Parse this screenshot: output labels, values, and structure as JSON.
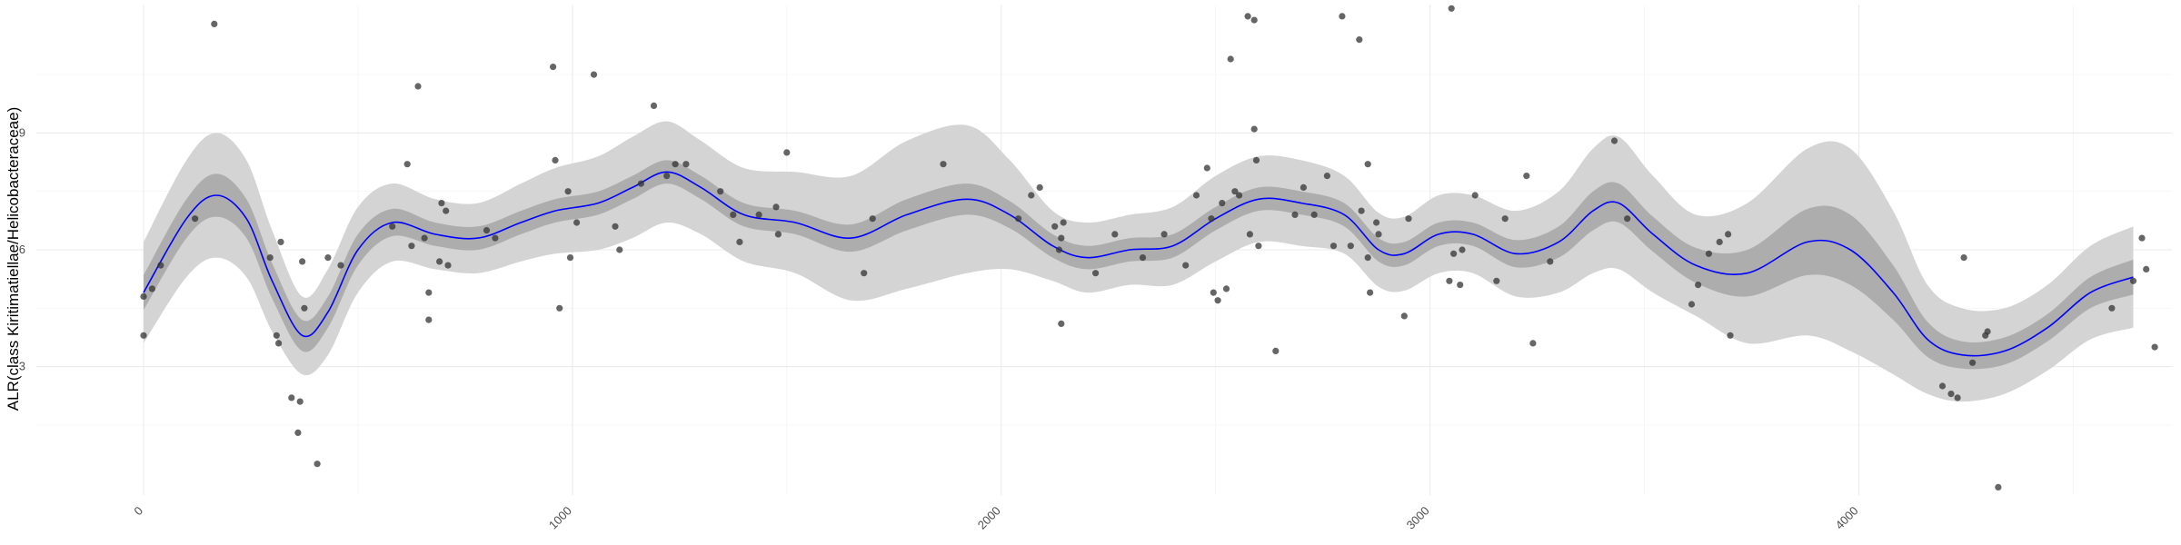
{
  "chart_data": {
    "type": "scatter",
    "title": "",
    "xlabel": "",
    "ylabel": "ALR(class Kiritimatiellae/Helicobacteraceae)",
    "xlim": [
      -250,
      4730
    ],
    "ylim": [
      -0.3,
      12.3
    ],
    "x_ticks": [
      0,
      1000,
      2000,
      3000,
      4000
    ],
    "x_tick_labels": [
      "0",
      "1000",
      "2000",
      "3000",
      "4000"
    ],
    "y_ticks": [
      3,
      6,
      9
    ],
    "y_tick_labels": [
      "3",
      "6",
      "9"
    ],
    "grid": true,
    "legend": "none",
    "colors": {
      "points": "#333333",
      "smooth_line": "#0000ff",
      "inner_band": "#adadad",
      "outer_band": "#d4d4d4",
      "grid": "#ebebeb"
    },
    "points": [
      [
        0,
        4.8
      ],
      [
        0,
        3.8
      ],
      [
        20,
        5.0
      ],
      [
        40,
        5.6
      ],
      [
        120,
        6.8
      ],
      [
        165,
        11.8
      ],
      [
        295,
        5.8
      ],
      [
        310,
        3.8
      ],
      [
        320,
        6.2
      ],
      [
        315,
        3.6
      ],
      [
        345,
        2.2
      ],
      [
        360,
        1.3
      ],
      [
        370,
        5.7
      ],
      [
        375,
        4.5
      ],
      [
        365,
        2.1
      ],
      [
        405,
        0.5
      ],
      [
        430,
        5.8
      ],
      [
        460,
        5.6
      ],
      [
        580,
        6.6
      ],
      [
        615,
        8.2
      ],
      [
        625,
        6.1
      ],
      [
        640,
        10.2
      ],
      [
        655,
        6.3
      ],
      [
        665,
        4.9
      ],
      [
        665,
        4.2
      ],
      [
        690,
        5.7
      ],
      [
        695,
        7.2
      ],
      [
        705,
        7.0
      ],
      [
        710,
        5.6
      ],
      [
        800,
        6.5
      ],
      [
        820,
        6.3
      ],
      [
        955,
        10.7
      ],
      [
        960,
        8.3
      ],
      [
        970,
        4.5
      ],
      [
        990,
        7.5
      ],
      [
        995,
        5.8
      ],
      [
        1010,
        6.7
      ],
      [
        1050,
        10.5
      ],
      [
        1100,
        6.6
      ],
      [
        1110,
        6.0
      ],
      [
        1160,
        7.7
      ],
      [
        1190,
        9.7
      ],
      [
        1220,
        7.9
      ],
      [
        1240,
        8.2
      ],
      [
        1265,
        8.2
      ],
      [
        1345,
        7.5
      ],
      [
        1375,
        6.9
      ],
      [
        1390,
        6.2
      ],
      [
        1435,
        6.9
      ],
      [
        1475,
        7.1
      ],
      [
        1480,
        6.4
      ],
      [
        1500,
        8.5
      ],
      [
        1680,
        5.4
      ],
      [
        1700,
        6.8
      ],
      [
        1865,
        8.2
      ],
      [
        2040,
        6.8
      ],
      [
        2070,
        7.4
      ],
      [
        2090,
        7.6
      ],
      [
        2125,
        6.6
      ],
      [
        2135,
        6.0
      ],
      [
        2140,
        6.3
      ],
      [
        2140,
        4.1
      ],
      [
        2145,
        6.7
      ],
      [
        2220,
        5.4
      ],
      [
        2265,
        6.4
      ],
      [
        2330,
        5.8
      ],
      [
        2380,
        6.4
      ],
      [
        2430,
        5.6
      ],
      [
        2455,
        7.4
      ],
      [
        2480,
        8.1
      ],
      [
        2490,
        6.8
      ],
      [
        2495,
        4.9
      ],
      [
        2505,
        4.7
      ],
      [
        2515,
        7.2
      ],
      [
        2525,
        5.0
      ],
      [
        2535,
        10.9
      ],
      [
        2545,
        7.5
      ],
      [
        2555,
        7.4
      ],
      [
        2575,
        12.0
      ],
      [
        2580,
        6.4
      ],
      [
        2590,
        9.1
      ],
      [
        2590,
        11.9
      ],
      [
        2595,
        8.3
      ],
      [
        2600,
        6.1
      ],
      [
        2640,
        3.4
      ],
      [
        2685,
        6.9
      ],
      [
        2705,
        7.6
      ],
      [
        2730,
        6.9
      ],
      [
        2760,
        7.9
      ],
      [
        2775,
        6.1
      ],
      [
        2795,
        12.0
      ],
      [
        2815,
        6.1
      ],
      [
        2835,
        11.4
      ],
      [
        2840,
        7.0
      ],
      [
        2855,
        8.2
      ],
      [
        2855,
        5.8
      ],
      [
        2860,
        4.9
      ],
      [
        2875,
        6.7
      ],
      [
        2880,
        6.4
      ],
      [
        2940,
        4.3
      ],
      [
        2950,
        6.8
      ],
      [
        3050,
        12.2
      ],
      [
        3045,
        5.2
      ],
      [
        3055,
        5.9
      ],
      [
        3070,
        5.1
      ],
      [
        3075,
        6.0
      ],
      [
        3105,
        7.4
      ],
      [
        3155,
        5.2
      ],
      [
        3175,
        6.8
      ],
      [
        3225,
        7.9
      ],
      [
        3240,
        3.6
      ],
      [
        3280,
        5.7
      ],
      [
        3430,
        8.8
      ],
      [
        3460,
        6.8
      ],
      [
        3610,
        4.6
      ],
      [
        3625,
        5.1
      ],
      [
        3650,
        5.9
      ],
      [
        3675,
        6.2
      ],
      [
        3695,
        6.4
      ],
      [
        3700,
        3.8
      ],
      [
        4195,
        2.5
      ],
      [
        4215,
        2.3
      ],
      [
        4230,
        2.2
      ],
      [
        4245,
        5.8
      ],
      [
        4265,
        3.1
      ],
      [
        4295,
        3.8
      ],
      [
        4300,
        3.9
      ],
      [
        4325,
        -0.1
      ],
      [
        4590,
        4.5
      ],
      [
        4640,
        5.2
      ],
      [
        4660,
        6.3
      ],
      [
        4670,
        5.5
      ],
      [
        4690,
        3.5
      ]
    ],
    "smooth_x": [
      0,
      100,
      170,
      240,
      300,
      370,
      430,
      500,
      580,
      680,
      780,
      880,
      960,
      1060,
      1140,
      1220,
      1300,
      1400,
      1520,
      1650,
      1780,
      1920,
      2020,
      2120,
      2200,
      2300,
      2400,
      2500,
      2600,
      2700,
      2800,
      2880,
      2940,
      3020,
      3100,
      3200,
      3300,
      3380,
      3440,
      3520,
      3620,
      3740,
      3880,
      3980,
      4080,
      4160,
      4240,
      4340,
      4440,
      4540,
      4640
    ],
    "smooth_y": [
      4.9,
      6.8,
      7.4,
      6.8,
      5.2,
      3.8,
      4.4,
      6.0,
      6.7,
      6.4,
      6.3,
      6.7,
      7.0,
      7.2,
      7.6,
      8.0,
      7.6,
      6.9,
      6.7,
      6.3,
      6.9,
      7.3,
      6.9,
      6.1,
      5.8,
      6.0,
      6.1,
      6.8,
      7.3,
      7.2,
      6.9,
      6.0,
      5.9,
      6.4,
      6.4,
      5.9,
      6.2,
      7.0,
      7.2,
      6.4,
      5.6,
      5.4,
      6.2,
      6.0,
      4.9,
      3.7,
      3.3,
      3.4,
      4.0,
      4.9,
      5.3
    ],
    "inner_band_halfwidth": [
      0.45,
      0.5,
      0.55,
      0.5,
      0.45,
      0.4,
      0.4,
      0.4,
      0.35,
      0.3,
      0.3,
      0.3,
      0.3,
      0.3,
      0.3,
      0.3,
      0.3,
      0.3,
      0.3,
      0.35,
      0.4,
      0.4,
      0.35,
      0.3,
      0.3,
      0.3,
      0.3,
      0.3,
      0.3,
      0.3,
      0.3,
      0.3,
      0.3,
      0.3,
      0.3,
      0.35,
      0.4,
      0.5,
      0.5,
      0.45,
      0.45,
      0.6,
      0.85,
      0.9,
      0.7,
      0.45,
      0.35,
      0.35,
      0.35,
      0.4,
      0.45
    ],
    "outer_band_halfwidth": [
      1.3,
      1.5,
      1.6,
      1.5,
      1.3,
      1.0,
      1.1,
      1.1,
      1.0,
      0.9,
      0.9,
      1.0,
      1.1,
      1.2,
      1.3,
      1.3,
      1.2,
      1.2,
      1.3,
      1.6,
      1.9,
      1.9,
      1.4,
      0.9,
      0.9,
      0.9,
      1.0,
      1.1,
      1.1,
      1.1,
      1.0,
      0.95,
      0.95,
      1.0,
      1.0,
      1.1,
      1.3,
      1.6,
      1.7,
      1.5,
      1.3,
      1.8,
      2.4,
      2.6,
      2.1,
      1.4,
      1.2,
      1.1,
      1.1,
      1.2,
      1.3
    ]
  }
}
